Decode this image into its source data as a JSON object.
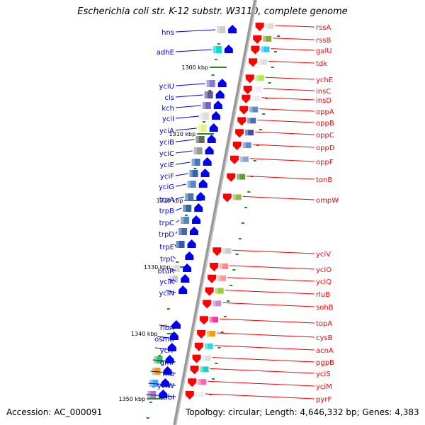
{
  "title": "Escherichia coli str. K-12 substr. W3110, complete genome",
  "footer": {
    "accession": "Accession: AC_000091",
    "topology": "Topology: circular; Length: 4,646,332 bp; Genes: 4,383"
  },
  "colors": {
    "forward": "#ff0000",
    "reverse": "#0000ee",
    "backbone": "#999999",
    "tick": "#228b22"
  },
  "kbp_ticks": [
    "1300 kbp",
    "1310 kbp",
    "1320 kbp",
    "1330 kbp",
    "1340 kbp",
    "1350 kbp"
  ],
  "forward_genes": [
    "rssA",
    "rssB",
    "galU",
    "tdk",
    "ychE",
    "insC",
    "insD",
    "oppA",
    "oppB",
    "oppC",
    "oppD",
    "oppF",
    "tonB",
    "ompW",
    "yciV",
    "yciO",
    "yciQ",
    "rluB",
    "sohB",
    "topA",
    "cysB",
    "acnA",
    "pgpB",
    "yciS",
    "yciM",
    "pyrF"
  ],
  "reverse_genes": [
    "hns",
    "adhE",
    "yciU",
    "cls",
    "kch",
    "yciI",
    "yciA",
    "yciB",
    "yciC",
    "yciE",
    "yciF",
    "yciG",
    "trpA",
    "trpB",
    "trpC",
    "trpD",
    "trpE",
    "trpL",
    "btuR",
    "yciK",
    "yciN",
    "ribA",
    "osmB",
    "yciT",
    "gmr",
    "rnb",
    "yciW",
    "fabI"
  ]
}
